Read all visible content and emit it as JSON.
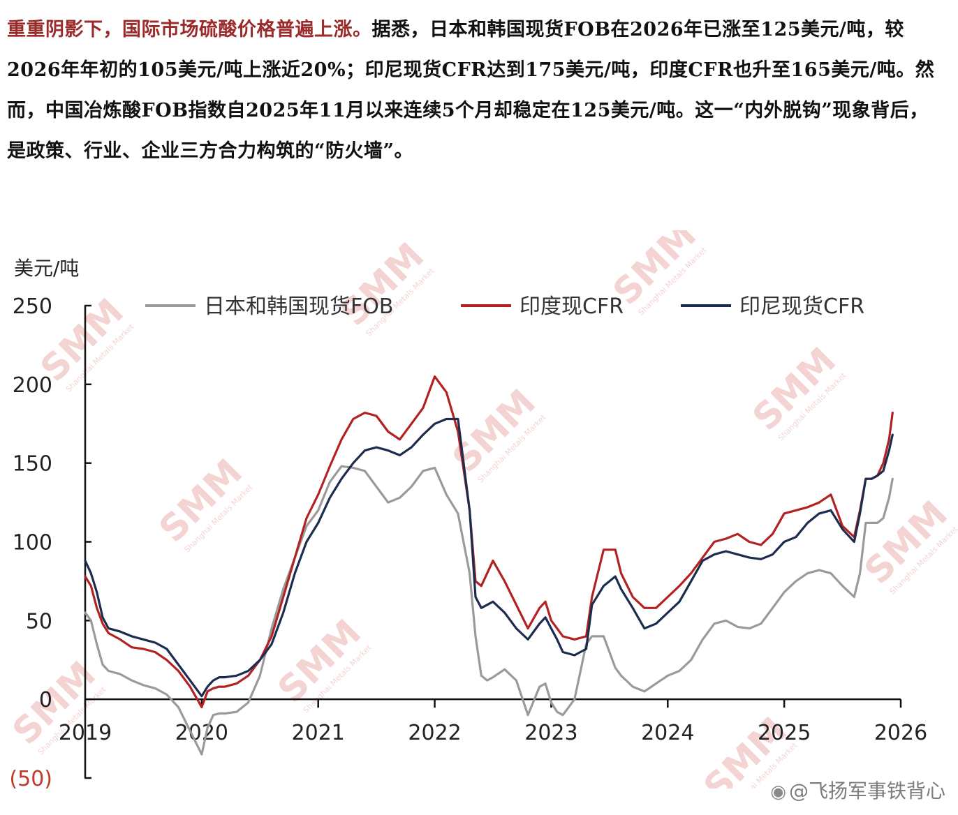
{
  "article": {
    "lead": "重重阴影下，国际市场硫酸价格普遍上涨。",
    "body": "据悉，日本和韩国现货FOB在2026年已涨至125美元/吨，较2026年年初的105美元/吨上涨近20%；印尼现货CFR达到175美元/吨，印度CFR也升至165美元/吨。然而，中国冶炼酸FOB指数自2025年11月以来连续5个月却稳定在125美元/吨。这一“内外脱钩”现象背后，是政策、行业、企业三方合力构筑的“防火墙”。"
  },
  "watermark": {
    "chart_mark": "SMM",
    "chart_mark_sub": "Shanghai Metals Market",
    "credit": "@飞扬军事铁背心"
  },
  "chart_data": {
    "type": "line",
    "ylabel": "美元/吨",
    "ylim": [
      -50,
      250
    ],
    "yticks": [
      -50,
      0,
      50,
      100,
      150,
      200,
      250
    ],
    "ytick_labels": [
      "(50)",
      "0",
      "50",
      "100",
      "150",
      "200",
      "250"
    ],
    "xlim": [
      2019,
      2026
    ],
    "xticks": [
      2019,
      2020,
      2021,
      2022,
      2023,
      2024,
      2025,
      2026
    ],
    "xtick_labels": [
      "2019",
      "2020",
      "2021",
      "2022",
      "2023",
      "2024",
      "2025",
      "2026"
    ],
    "legend_position": "top",
    "colors": {
      "fob": "#9a9a9a",
      "india": "#b22222",
      "indonesia": "#1c2c4e",
      "ytick_negative": "#c0392b"
    },
    "series": [
      {
        "name": "日本和韩国现货FOB",
        "color": "#9a9a9a",
        "x": [
          2019.0,
          2019.05,
          2019.1,
          2019.15,
          2019.2,
          2019.3,
          2019.4,
          2019.5,
          2019.6,
          2019.7,
          2019.8,
          2019.9,
          2020.0,
          2020.05,
          2020.1,
          2020.15,
          2020.2,
          2020.3,
          2020.4,
          2020.5,
          2020.6,
          2020.7,
          2020.8,
          2020.9,
          2021.0,
          2021.1,
          2021.2,
          2021.3,
          2021.4,
          2021.5,
          2021.6,
          2021.7,
          2021.8,
          2021.9,
          2022.0,
          2022.1,
          2022.2,
          2022.3,
          2022.35,
          2022.4,
          2022.45,
          2022.5,
          2022.6,
          2022.7,
          2022.8,
          2022.9,
          2022.95,
          2023.0,
          2023.05,
          2023.1,
          2023.2,
          2023.3,
          2023.35,
          2023.45,
          2023.55,
          2023.6,
          2023.7,
          2023.8,
          2023.9,
          2024.0,
          2024.1,
          2024.2,
          2024.3,
          2024.4,
          2024.5,
          2024.6,
          2024.7,
          2024.8,
          2024.9,
          2025.0,
          2025.1,
          2025.2,
          2025.3,
          2025.4,
          2025.5,
          2025.6,
          2025.65,
          2025.7,
          2025.75,
          2025.8,
          2025.85,
          2025.9,
          2025.93
        ],
        "y": [
          55,
          50,
          35,
          22,
          18,
          16,
          12,
          9,
          7,
          3,
          -5,
          -20,
          -35,
          -18,
          -10,
          -9,
          -9,
          -8,
          -2,
          15,
          45,
          70,
          90,
          110,
          120,
          138,
          148,
          147,
          145,
          135,
          125,
          128,
          135,
          145,
          147,
          130,
          118,
          80,
          40,
          15,
          12,
          14,
          19,
          12,
          -10,
          8,
          10,
          -2,
          -8,
          -10,
          0,
          35,
          40,
          40,
          20,
          15,
          8,
          5,
          10,
          15,
          18,
          25,
          38,
          48,
          50,
          46,
          45,
          48,
          58,
          68,
          75,
          80,
          82,
          80,
          72,
          65,
          80,
          112,
          112,
          112,
          115,
          128,
          140
        ]
      },
      {
        "name": "印度现CFR",
        "color": "#b22222",
        "x": [
          2019.0,
          2019.05,
          2019.1,
          2019.15,
          2019.2,
          2019.3,
          2019.4,
          2019.5,
          2019.6,
          2019.7,
          2019.8,
          2019.9,
          2020.0,
          2020.05,
          2020.1,
          2020.15,
          2020.2,
          2020.3,
          2020.4,
          2020.5,
          2020.6,
          2020.7,
          2020.8,
          2020.9,
          2021.0,
          2021.1,
          2021.2,
          2021.3,
          2021.4,
          2021.5,
          2021.6,
          2021.7,
          2021.8,
          2021.9,
          2022.0,
          2022.1,
          2022.2,
          2022.3,
          2022.35,
          2022.4,
          2022.45,
          2022.5,
          2022.6,
          2022.7,
          2022.8,
          2022.9,
          2022.95,
          2023.0,
          2023.05,
          2023.1,
          2023.2,
          2023.3,
          2023.35,
          2023.45,
          2023.55,
          2023.6,
          2023.7,
          2023.8,
          2023.9,
          2024.0,
          2024.1,
          2024.2,
          2024.3,
          2024.4,
          2024.5,
          2024.6,
          2024.7,
          2024.8,
          2024.9,
          2025.0,
          2025.1,
          2025.2,
          2025.3,
          2025.4,
          2025.5,
          2025.6,
          2025.65,
          2025.7,
          2025.75,
          2025.8,
          2025.85,
          2025.9,
          2025.93
        ],
        "y": [
          78,
          72,
          58,
          48,
          42,
          38,
          33,
          32,
          30,
          25,
          18,
          8,
          -5,
          5,
          7,
          8,
          8,
          10,
          15,
          25,
          40,
          65,
          90,
          115,
          130,
          148,
          165,
          178,
          182,
          180,
          170,
          165,
          175,
          185,
          205,
          195,
          170,
          120,
          75,
          72,
          80,
          88,
          75,
          60,
          45,
          58,
          62,
          50,
          45,
          40,
          38,
          40,
          65,
          95,
          95,
          80,
          65,
          58,
          58,
          65,
          72,
          80,
          90,
          100,
          102,
          105,
          100,
          98,
          105,
          118,
          120,
          122,
          125,
          130,
          110,
          103,
          120,
          140,
          140,
          142,
          150,
          165,
          182
        ]
      },
      {
        "name": "印尼现货CFR",
        "color": "#1c2c4e",
        "x": [
          2019.0,
          2019.05,
          2019.1,
          2019.15,
          2019.2,
          2019.3,
          2019.4,
          2019.5,
          2019.6,
          2019.7,
          2019.8,
          2019.9,
          2020.0,
          2020.05,
          2020.1,
          2020.15,
          2020.2,
          2020.3,
          2020.4,
          2020.5,
          2020.6,
          2020.7,
          2020.8,
          2020.9,
          2021.0,
          2021.1,
          2021.2,
          2021.3,
          2021.4,
          2021.5,
          2021.6,
          2021.7,
          2021.8,
          2021.9,
          2022.0,
          2022.1,
          2022.2,
          2022.3,
          2022.35,
          2022.4,
          2022.45,
          2022.5,
          2022.6,
          2022.7,
          2022.8,
          2022.9,
          2022.95,
          2023.0,
          2023.05,
          2023.1,
          2023.2,
          2023.3,
          2023.35,
          2023.45,
          2023.55,
          2023.6,
          2023.7,
          2023.8,
          2023.9,
          2024.0,
          2024.1,
          2024.2,
          2024.3,
          2024.4,
          2024.5,
          2024.6,
          2024.7,
          2024.8,
          2024.9,
          2025.0,
          2025.1,
          2025.2,
          2025.3,
          2025.4,
          2025.5,
          2025.6,
          2025.65,
          2025.7,
          2025.75,
          2025.8,
          2025.85,
          2025.9,
          2025.93
        ],
        "y": [
          88,
          80,
          68,
          52,
          45,
          43,
          40,
          38,
          36,
          32,
          22,
          12,
          2,
          8,
          12,
          14,
          14,
          15,
          18,
          25,
          35,
          55,
          80,
          100,
          112,
          128,
          140,
          150,
          158,
          160,
          158,
          155,
          160,
          168,
          175,
          178,
          178,
          120,
          65,
          58,
          60,
          62,
          55,
          45,
          38,
          48,
          52,
          45,
          38,
          30,
          28,
          32,
          60,
          72,
          78,
          70,
          58,
          45,
          48,
          55,
          62,
          75,
          88,
          92,
          94,
          92,
          90,
          89,
          92,
          100,
          103,
          112,
          118,
          120,
          108,
          100,
          118,
          140,
          140,
          142,
          145,
          158,
          168
        ]
      }
    ]
  }
}
